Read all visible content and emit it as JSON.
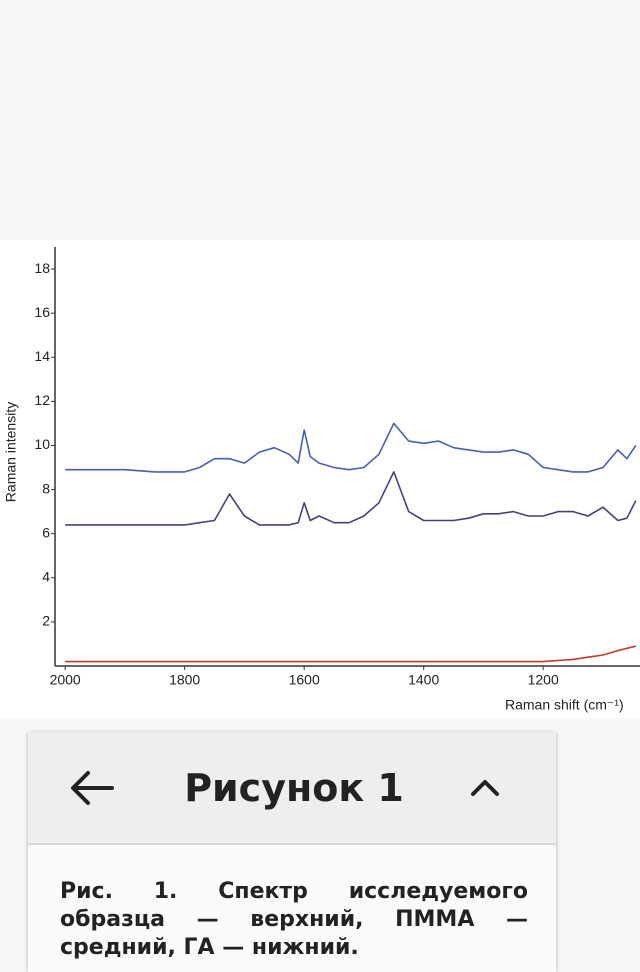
{
  "chart_data": {
    "type": "line",
    "y_label": "Raman intensity",
    "x_label": "Raman shift (cm⁻¹)",
    "x": [
      2000,
      1950,
      1900,
      1850,
      1800,
      1775,
      1750,
      1725,
      1700,
      1675,
      1650,
      1625,
      1610,
      1600,
      1590,
      1575,
      1550,
      1525,
      1500,
      1475,
      1450,
      1425,
      1400,
      1375,
      1350,
      1325,
      1300,
      1275,
      1250,
      1225,
      1200,
      1175,
      1150,
      1125,
      1100,
      1075,
      1060,
      1045
    ],
    "series": [
      {
        "color": "#4a5fb0",
        "values": [
          8.9,
          8.9,
          8.9,
          8.8,
          8.8,
          9.0,
          9.4,
          9.4,
          9.2,
          9.7,
          9.9,
          9.6,
          9.2,
          10.7,
          9.5,
          9.2,
          9.0,
          8.9,
          9.0,
          9.6,
          11.0,
          10.2,
          10.1,
          10.2,
          9.9,
          9.8,
          9.7,
          9.7,
          9.8,
          9.6,
          9.0,
          8.9,
          8.8,
          8.8,
          9.0,
          9.8,
          9.4,
          10.0
        ]
      },
      {
        "color": "#4b3f7a",
        "values": [
          6.4,
          6.4,
          6.4,
          6.4,
          6.4,
          6.5,
          6.6,
          7.8,
          6.8,
          6.4,
          6.4,
          6.4,
          6.5,
          7.4,
          6.6,
          6.8,
          6.5,
          6.5,
          6.8,
          7.4,
          8.8,
          7.0,
          6.6,
          6.6,
          6.6,
          6.7,
          6.9,
          6.9,
          7.0,
          6.8,
          6.8,
          7.0,
          7.0,
          6.8,
          7.2,
          6.6,
          6.7,
          7.5
        ]
      },
      {
        "color": "#c0392b",
        "values": [
          0.2,
          0.2,
          0.2,
          0.2,
          0.2,
          0.2,
          0.2,
          0.2,
          0.2,
          0.2,
          0.2,
          0.2,
          0.2,
          0.2,
          0.2,
          0.2,
          0.2,
          0.2,
          0.2,
          0.2,
          0.2,
          0.2,
          0.2,
          0.2,
          0.2,
          0.2,
          0.2,
          0.2,
          0.2,
          0.2,
          0.2,
          0.25,
          0.3,
          0.4,
          0.5,
          0.7,
          0.8,
          0.9
        ]
      }
    ],
    "xlim": [
      2017,
      1038
    ],
    "ylim": [
      0,
      19
    ],
    "xticks": [
      2000,
      1800,
      1600,
      1400,
      1200
    ],
    "yticks": [
      2,
      4,
      6,
      8,
      10,
      12,
      14,
      16,
      18
    ]
  },
  "panel": {
    "title": "Рисунок 1",
    "caption": "Рис. 1. Спектр исследуемого образца — верхний, ПММА — средний, ГА — нижний."
  }
}
